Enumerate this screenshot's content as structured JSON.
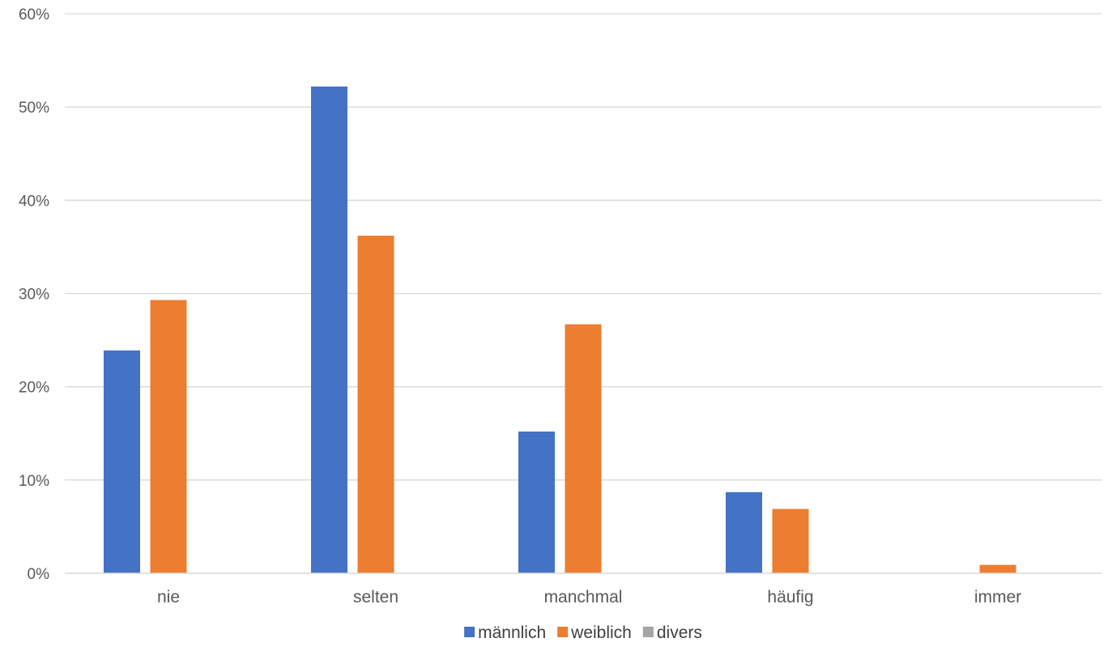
{
  "chart_data": {
    "type": "bar",
    "title": "",
    "xlabel": "",
    "ylabel": "",
    "categories": [
      "nie",
      "selten",
      "manchmal",
      "häufig",
      "immer"
    ],
    "series": [
      {
        "name": "männlich",
        "color": "#4472C4",
        "values": [
          0.239,
          0.522,
          0.152,
          0.087,
          0.0
        ]
      },
      {
        "name": "weiblich",
        "color": "#ED7D31",
        "values": [
          0.293,
          0.362,
          0.267,
          0.069,
          0.009
        ]
      },
      {
        "name": "divers",
        "color": "#A5A5A5",
        "values": [
          0.0,
          0.0,
          0.0,
          0.0,
          0.0
        ]
      }
    ],
    "ylim": [
      0,
      0.6
    ],
    "yticks": [
      0,
      0.1,
      0.2,
      0.3,
      0.4,
      0.5,
      0.6
    ],
    "ytick_labels": [
      "0%",
      "10%",
      "20%",
      "30%",
      "40%",
      "50%",
      "60%"
    ],
    "grid": true,
    "legend": "bottom-center"
  }
}
